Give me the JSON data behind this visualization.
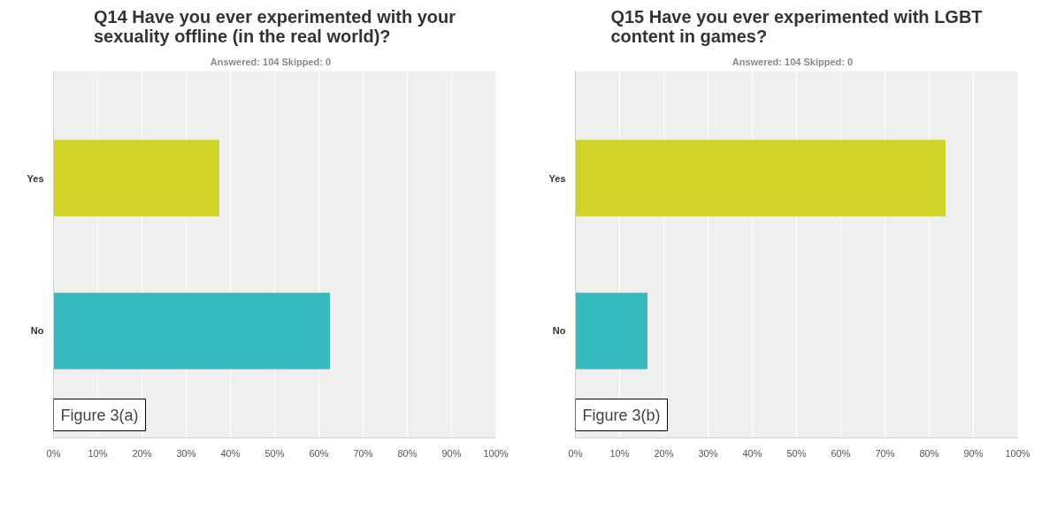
{
  "chart_data": [
    {
      "type": "bar",
      "orientation": "horizontal",
      "title": "Q14 Have you ever experimented with your sexuality offline (in the real world)?",
      "subtitle": "Answered: 104    Skipped: 0",
      "categories": [
        "Yes",
        "No"
      ],
      "values": [
        37.5,
        62.5
      ],
      "colors": [
        "#cfd426",
        "#33bbbd"
      ],
      "xlim": [
        0,
        100
      ],
      "xticks": [
        {
          "value": 0,
          "label": "0%"
        },
        {
          "value": 10,
          "label": "10%"
        },
        {
          "value": 20,
          "label": "20%"
        },
        {
          "value": 30,
          "label": "30%"
        },
        {
          "value": 40,
          "label": "40%"
        },
        {
          "value": 50,
          "label": "50%"
        },
        {
          "value": 60,
          "label": "60%"
        },
        {
          "value": 70,
          "label": "70%"
        },
        {
          "value": 80,
          "label": "80%"
        },
        {
          "value": 90,
          "label": "90%"
        },
        {
          "value": 100,
          "label": "100%"
        }
      ],
      "grid": "x",
      "annotations": [
        "Figure 3(a)"
      ]
    },
    {
      "type": "bar",
      "orientation": "horizontal",
      "title": "Q15 Have you ever experimented with LGBT content in games?",
      "subtitle": "Answered: 104    Skipped: 0",
      "categories": [
        "Yes",
        "No"
      ],
      "values": [
        83.7,
        16.3
      ],
      "colors": [
        "#cfd426",
        "#33bbbd"
      ],
      "xlim": [
        0,
        100
      ],
      "xticks": [
        {
          "value": 0,
          "label": "0%"
        },
        {
          "value": 10,
          "label": "10%"
        },
        {
          "value": 20,
          "label": "20%"
        },
        {
          "value": 30,
          "label": "30%"
        },
        {
          "value": 40,
          "label": "40%"
        },
        {
          "value": 50,
          "label": "50%"
        },
        {
          "value": 60,
          "label": "60%"
        },
        {
          "value": 70,
          "label": "70%"
        },
        {
          "value": 80,
          "label": "80%"
        },
        {
          "value": 90,
          "label": "90%"
        },
        {
          "value": 100,
          "label": "100%"
        }
      ],
      "grid": "x",
      "annotations": [
        "Figure 3(b)"
      ]
    }
  ]
}
